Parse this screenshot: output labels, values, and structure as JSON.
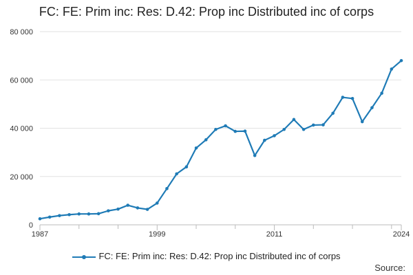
{
  "chart_data": {
    "type": "line",
    "title": "FC: FE: Prim inc: Res: D.42: Prop inc Distributed inc of corps",
    "xlabel": "",
    "ylabel": "",
    "xlim": [
      1987,
      2024
    ],
    "ylim": [
      0,
      80000
    ],
    "y_ticks": [
      0,
      20000,
      40000,
      60000,
      80000
    ],
    "y_tick_labels": [
      "0",
      "20 000",
      "40 000",
      "60 000",
      "80 000"
    ],
    "x_tick_labels": [
      "1987",
      "1999",
      "2011",
      "2024"
    ],
    "x_tick_years": [
      1987,
      1999,
      2011,
      2024
    ],
    "grid": "horizontal",
    "legend": "bottom",
    "series": [
      {
        "name": "FC: FE: Prim inc: Res: D.42: Prop inc Distributed inc of corps",
        "color": "#1f7bb6",
        "x": [
          1987,
          1988,
          1989,
          1990,
          1991,
          1992,
          1993,
          1994,
          1995,
          1996,
          1997,
          1998,
          1999,
          2000,
          2001,
          2002,
          2003,
          2004,
          2005,
          2006,
          2007,
          2008,
          2009,
          2010,
          2011,
          2012,
          2013,
          2014,
          2015,
          2016,
          2017,
          2018,
          2019,
          2020,
          2021,
          2022,
          2023,
          2024
        ],
        "values": [
          2500,
          3200,
          3800,
          4200,
          4500,
          4500,
          4600,
          5800,
          6500,
          8100,
          7000,
          6400,
          9000,
          15000,
          21100,
          24000,
          31800,
          35200,
          39500,
          41000,
          38700,
          38800,
          28700,
          35000,
          36900,
          39500,
          43600,
          39500,
          41300,
          41400,
          46200,
          52800,
          52300,
          42700,
          48500,
          54500,
          64500,
          68000
        ]
      }
    ]
  },
  "legend_label": "FC: FE: Prim inc: Res: D.42: Prop inc Distributed inc of corps",
  "source_label": "Source:"
}
